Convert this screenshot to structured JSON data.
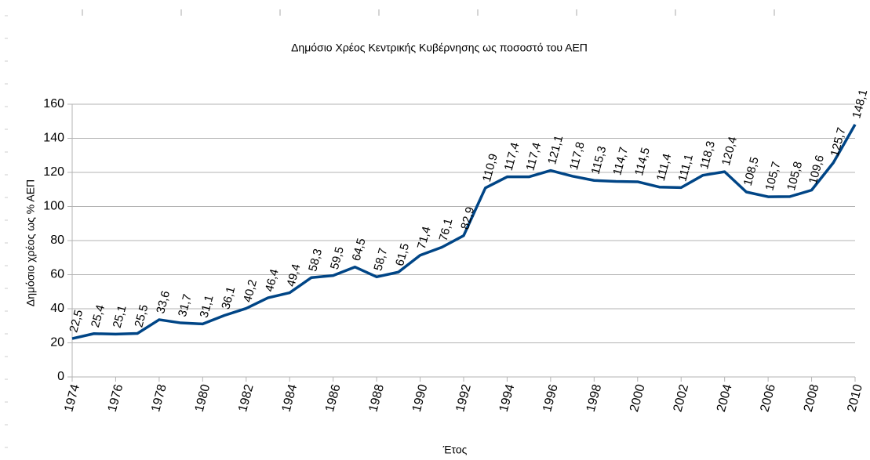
{
  "chart_data": {
    "type": "line",
    "title": "Δημόσιο Χρέος Κεντρικής Κυβέρνησης ως ποσοστό του ΑΕΠ",
    "x_label": "Έτος",
    "y_label": "Δημόσιο χρέος ως % ΑΕΠ",
    "x": [
      1974,
      1975,
      1976,
      1977,
      1978,
      1979,
      1980,
      1981,
      1982,
      1983,
      1984,
      1985,
      1986,
      1987,
      1988,
      1989,
      1990,
      1991,
      1992,
      1993,
      1994,
      1995,
      1996,
      1997,
      1998,
      1999,
      2000,
      2001,
      2002,
      2003,
      2004,
      2005,
      2006,
      2007,
      2008,
      2009,
      2010
    ],
    "values": [
      22.5,
      25.4,
      25.1,
      25.5,
      33.6,
      31.7,
      31.1,
      36.1,
      40.2,
      46.4,
      49.4,
      58.3,
      59.5,
      64.5,
      58.7,
      61.5,
      71.4,
      76.1,
      82.9,
      110.9,
      117.4,
      117.4,
      121.1,
      117.8,
      115.3,
      114.7,
      114.5,
      111.4,
      111.1,
      118.3,
      120.4,
      108.5,
      105.7,
      105.8,
      109.6,
      125.7,
      148.1
    ],
    "value_labels": [
      "22,5",
      "25,4",
      "25,1",
      "25,5",
      "33,6",
      "31,7",
      "31,1",
      "36,1",
      "40,2",
      "46,4",
      "49,4",
      "58,3",
      "59,5",
      "64,5",
      "58,7",
      "61,5",
      "71,4",
      "76,1",
      "82,9",
      "110,9",
      "117,4",
      "117,4",
      "121,1",
      "117,8",
      "115,3",
      "114,7",
      "114,5",
      "111,4",
      "111,1",
      "118,3",
      "120,4",
      "108,5",
      "105,7",
      "105,8",
      "109,6",
      "125,7",
      "148,1"
    ],
    "color": "#004586",
    "xlim": [
      1974,
      2010
    ],
    "xticks": [
      1974,
      1976,
      1978,
      1980,
      1982,
      1984,
      1986,
      1988,
      1990,
      1992,
      1994,
      1996,
      1998,
      2000,
      2002,
      2004,
      2006,
      2008,
      2010
    ],
    "ylim": [
      0,
      160
    ],
    "yticks": [
      0,
      20,
      40,
      60,
      80,
      100,
      120,
      140,
      160
    ],
    "grid": true
  }
}
